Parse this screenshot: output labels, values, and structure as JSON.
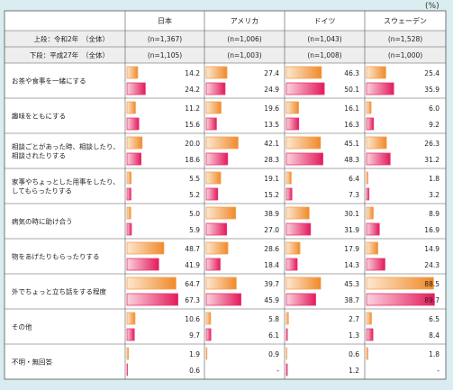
{
  "unit": "(%)",
  "chart_data": {
    "type": "bar",
    "orientation": "horizontal",
    "countries": [
      "日本",
      "アメリカ",
      "ドイツ",
      "スウェーデン"
    ],
    "legend": [
      {
        "label": "上段：令和2年　（全体）",
        "sample": [
          "(n=1,367)",
          "(n=1,006)",
          "(n=1,043)",
          "(n=1,528)"
        ],
        "color": "#f4a152"
      },
      {
        "label": "下段：平成27年　（全体）",
        "sample": [
          "(n=1,105)",
          "(n=1,003)",
          "(n=1,008)",
          "(n=1,000)"
        ],
        "color": "#e8356f"
      }
    ],
    "categories": [
      {
        "label": [
          "お茶や食事を一緒にする"
        ],
        "values": [
          [
            "14.2",
            "24.2"
          ],
          [
            "27.4",
            "24.9"
          ],
          [
            "46.3",
            "50.1"
          ],
          [
            "25.4",
            "35.9"
          ]
        ]
      },
      {
        "label": [
          "趣味をともにする"
        ],
        "values": [
          [
            "11.2",
            "15.6"
          ],
          [
            "19.6",
            "13.5"
          ],
          [
            "16.1",
            "16.3"
          ],
          [
            "6.0",
            "9.2"
          ]
        ]
      },
      {
        "label": [
          "相談ごとがあった時、相談したり、",
          "相談されたりする"
        ],
        "values": [
          [
            "20.0",
            "18.6"
          ],
          [
            "42.1",
            "28.3"
          ],
          [
            "45.1",
            "48.3"
          ],
          [
            "26.3",
            "31.2"
          ]
        ]
      },
      {
        "label": [
          "家事やちょっとした用事をしたり、",
          "してもらったりする"
        ],
        "values": [
          [
            "5.5",
            "5.2"
          ],
          [
            "19.1",
            "15.2"
          ],
          [
            "6.4",
            "7.3"
          ],
          [
            "1.8",
            "3.2"
          ]
        ]
      },
      {
        "label": [
          "病気の時に助け合う"
        ],
        "values": [
          [
            "5.0",
            "5.9"
          ],
          [
            "38.9",
            "27.0"
          ],
          [
            "30.1",
            "31.9"
          ],
          [
            "8.9",
            "16.9"
          ]
        ]
      },
      {
        "label": [
          "物をあげたりもらったりする"
        ],
        "values": [
          [
            "48.7",
            "41.9"
          ],
          [
            "28.6",
            "18.4"
          ],
          [
            "17.9",
            "14.3"
          ],
          [
            "14.9",
            "24.3"
          ]
        ]
      },
      {
        "label": [
          "外でちょっと立ち話をする程度"
        ],
        "values": [
          [
            "64.7",
            "67.3"
          ],
          [
            "39.7",
            "45.9"
          ],
          [
            "45.3",
            "38.7"
          ],
          [
            "88.5",
            "89.7"
          ]
        ]
      },
      {
        "label": [
          "その他"
        ],
        "values": [
          [
            "10.6",
            "9.7"
          ],
          [
            "5.8",
            "6.1"
          ],
          [
            "2.7",
            "1.3"
          ],
          [
            "6.5",
            "8.4"
          ]
        ]
      },
      {
        "label": [
          "不明・無回答"
        ],
        "values": [
          [
            "1.9",
            "0.6"
          ],
          [
            "0.9",
            "-"
          ],
          [
            "0.6",
            "1.2"
          ],
          [
            "1.8",
            "-"
          ]
        ]
      }
    ],
    "xlim": [
      0,
      100
    ]
  }
}
